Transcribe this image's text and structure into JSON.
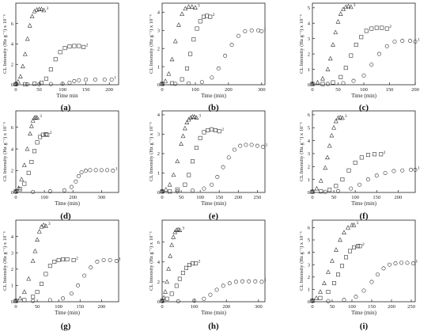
{
  "chart_data": [
    {
      "type": "scatter",
      "panel_label": "(a)",
      "xlabel": "Time min",
      "ylabel": "CL Intensity (Hz g⁻¹) x 10⁻⁶",
      "xlim": [
        0,
        220
      ],
      "ylim": [
        0,
        8
      ],
      "xticks": [
        0,
        50,
        100,
        150,
        200
      ],
      "yticks": [
        0,
        2,
        4,
        6
      ],
      "series": [
        {
          "name": "1",
          "marker": "circle",
          "x": [
            0,
            25,
            50,
            75,
            100,
            115,
            125,
            135,
            150,
            170,
            190,
            205
          ],
          "y": [
            0.05,
            0.05,
            0.06,
            0.07,
            0.1,
            0.2,
            0.35,
            0.45,
            0.5,
            0.5,
            0.5,
            0.5
          ]
        },
        {
          "name": "2",
          "marker": "square",
          "x": [
            0,
            20,
            40,
            55,
            65,
            75,
            85,
            95,
            105,
            115,
            125,
            135,
            145
          ],
          "y": [
            0.05,
            0.05,
            0.1,
            0.2,
            0.6,
            1.5,
            2.5,
            3.2,
            3.6,
            3.75,
            3.8,
            3.8,
            3.7
          ]
        },
        {
          "name": "3",
          "marker": "triangle",
          "x": [
            0,
            5,
            10,
            15,
            20,
            25,
            30,
            35,
            40,
            45,
            50,
            55,
            60
          ],
          "y": [
            0.1,
            0.3,
            0.8,
            1.8,
            3.0,
            4.5,
            5.8,
            6.7,
            7.2,
            7.35,
            7.4,
            7.4,
            7.3
          ]
        }
      ]
    },
    {
      "type": "scatter",
      "panel_label": "(b)",
      "xlabel": "Time (min)",
      "ylabel": "CL Intensity (Hz g⁻¹) x 10⁻⁶",
      "xlim": [
        0,
        310
      ],
      "ylim": [
        0,
        4.5
      ],
      "xticks": [
        0,
        100,
        200,
        300
      ],
      "yticks": [
        0,
        1,
        2,
        3,
        4
      ],
      "series": [
        {
          "name": "1",
          "marker": "circle",
          "x": [
            0,
            40,
            80,
            120,
            150,
            170,
            190,
            210,
            230,
            250,
            270,
            290,
            300
          ],
          "y": [
            0.05,
            0.05,
            0.08,
            0.15,
            0.4,
            0.9,
            1.6,
            2.2,
            2.7,
            2.95,
            3.0,
            3.0,
            2.95
          ]
        },
        {
          "name": "2",
          "marker": "square",
          "x": [
            0,
            30,
            60,
            75,
            85,
            95,
            105,
            115,
            125,
            135,
            145
          ],
          "y": [
            0.05,
            0.08,
            0.3,
            0.9,
            1.7,
            2.5,
            3.1,
            3.5,
            3.75,
            3.8,
            3.75
          ]
        },
        {
          "name": "3",
          "marker": "triangle",
          "x": [
            0,
            10,
            20,
            30,
            40,
            50,
            60,
            70,
            80,
            90,
            100
          ],
          "y": [
            0.05,
            0.2,
            0.6,
            1.4,
            2.4,
            3.3,
            3.9,
            4.2,
            4.3,
            4.3,
            4.25
          ]
        }
      ]
    },
    {
      "type": "scatter",
      "panel_label": "(c)",
      "xlabel": "Time (min)",
      "ylabel": "CL Intensity (Hz g⁻¹) x 10⁻⁶",
      "xlim": [
        0,
        200
      ],
      "ylim": [
        0,
        5.3
      ],
      "xticks": [
        0,
        50,
        100,
        150,
        200
      ],
      "yticks": [
        0,
        1,
        2,
        3,
        4,
        5
      ],
      "series": [
        {
          "name": "1",
          "marker": "circle",
          "x": [
            0,
            30,
            60,
            80,
            100,
            115,
            130,
            145,
            160,
            175,
            190,
            200
          ],
          "y": [
            0.05,
            0.05,
            0.1,
            0.25,
            0.6,
            1.3,
            2.0,
            2.5,
            2.8,
            2.85,
            2.85,
            2.8
          ]
        },
        {
          "name": "2",
          "marker": "square",
          "x": [
            0,
            20,
            40,
            55,
            65,
            75,
            85,
            95,
            105,
            115,
            125,
            135,
            145
          ],
          "y": [
            0.05,
            0.05,
            0.15,
            0.5,
            1.1,
            1.9,
            2.6,
            3.1,
            3.5,
            3.65,
            3.7,
            3.7,
            3.65
          ]
        },
        {
          "name": "3",
          "marker": "triangle",
          "x": [
            0,
            10,
            20,
            30,
            35,
            40,
            45,
            50,
            55,
            60,
            65,
            70,
            75
          ],
          "y": [
            0.05,
            0.15,
            0.4,
            1.0,
            1.7,
            2.6,
            3.4,
            4.1,
            4.6,
            4.9,
            5.05,
            5.1,
            5.05
          ]
        }
      ]
    },
    {
      "type": "scatter",
      "panel_label": "(d)",
      "xlabel": "Time (min)",
      "ylabel": "CL Intensity (Hz g⁻¹) x 10⁻⁶",
      "xlim": [
        0,
        360
      ],
      "ylim": [
        0,
        7.5
      ],
      "xticks": [
        0,
        100,
        200,
        300
      ],
      "yticks": [
        0,
        2,
        4,
        6
      ],
      "series": [
        {
          "name": "1",
          "marker": "circle",
          "x": [
            0,
            60,
            120,
            170,
            195,
            210,
            220,
            230,
            245,
            260,
            280,
            300,
            320,
            340
          ],
          "y": [
            0.05,
            0.05,
            0.1,
            0.2,
            0.5,
            1.0,
            1.5,
            1.85,
            2.0,
            2.05,
            2.05,
            2.05,
            2.05,
            2.0
          ]
        },
        {
          "name": "2",
          "marker": "square",
          "x": [
            0,
            15,
            30,
            45,
            55,
            65,
            75,
            85,
            95,
            105,
            110
          ],
          "y": [
            0.1,
            0.3,
            0.8,
            1.8,
            2.8,
            3.8,
            4.6,
            5.1,
            5.3,
            5.35,
            5.3
          ]
        },
        {
          "name": "3",
          "marker": "triangle",
          "x": [
            0,
            10,
            20,
            30,
            40,
            50,
            55,
            60,
            65,
            70,
            75
          ],
          "y": [
            0.1,
            0.4,
            1.2,
            2.5,
            4.0,
            5.4,
            6.1,
            6.6,
            6.85,
            6.9,
            6.85
          ]
        }
      ]
    },
    {
      "type": "scatter",
      "panel_label": "(e)",
      "xlabel": "Time (min)",
      "ylabel": "CL Intensity (Hz g⁻¹) x 10⁻⁶",
      "xlim": [
        0,
        270
      ],
      "ylim": [
        0,
        4.2
      ],
      "xticks": [
        0,
        50,
        100,
        150,
        200,
        250
      ],
      "yticks": [
        0,
        1,
        2,
        3,
        4
      ],
      "series": [
        {
          "name": "1",
          "marker": "circle",
          "x": [
            0,
            40,
            80,
            110,
            130,
            145,
            160,
            175,
            190,
            205,
            220,
            235,
            250,
            265
          ],
          "y": [
            0.05,
            0.05,
            0.1,
            0.2,
            0.4,
            0.8,
            1.3,
            1.8,
            2.2,
            2.4,
            2.45,
            2.45,
            2.4,
            2.35
          ]
        },
        {
          "name": "2",
          "marker": "square",
          "x": [
            0,
            20,
            40,
            60,
            70,
            80,
            90,
            100,
            110,
            120,
            130,
            140,
            150
          ],
          "y": [
            0.05,
            0.05,
            0.15,
            0.4,
            0.9,
            1.6,
            2.3,
            2.8,
            3.1,
            3.2,
            3.25,
            3.2,
            3.15
          ]
        },
        {
          "name": "3",
          "marker": "triangle",
          "x": [
            0,
            10,
            20,
            30,
            40,
            50,
            55,
            60,
            65,
            70,
            75,
            80,
            85,
            90
          ],
          "y": [
            0.05,
            0.15,
            0.4,
            0.9,
            1.6,
            2.5,
            2.9,
            3.3,
            3.6,
            3.75,
            3.85,
            3.9,
            3.9,
            3.85
          ]
        }
      ]
    },
    {
      "type": "scatter",
      "panel_label": "(f)",
      "xlabel": "Time (min)",
      "ylabel": "CL Intensity (Hz g⁻¹) x 10⁻⁶",
      "xlim": [
        0,
        240
      ],
      "ylim": [
        0,
        6.3
      ],
      "xticks": [
        0,
        50,
        100,
        150,
        200
      ],
      "yticks": [
        0,
        1,
        2,
        3,
        4,
        5,
        6
      ],
      "series": [
        {
          "name": "1",
          "marker": "circle",
          "x": [
            0,
            30,
            60,
            90,
            110,
            130,
            150,
            170,
            190,
            210,
            230,
            240
          ],
          "y": [
            0.05,
            0.05,
            0.1,
            0.3,
            0.6,
            1.0,
            1.3,
            1.5,
            1.65,
            1.7,
            1.75,
            1.75
          ]
        },
        {
          "name": "2",
          "marker": "square",
          "x": [
            0,
            20,
            40,
            55,
            70,
            85,
            100,
            115,
            130,
            145,
            160
          ],
          "y": [
            0.05,
            0.08,
            0.2,
            0.5,
            1.0,
            1.7,
            2.3,
            2.7,
            2.9,
            2.95,
            2.95
          ]
        },
        {
          "name": "3",
          "marker": "triangle",
          "x": [
            0,
            10,
            20,
            30,
            35,
            40,
            45,
            50,
            55,
            60,
            65,
            70
          ],
          "y": [
            0.1,
            0.3,
            0.9,
            1.9,
            2.7,
            3.6,
            4.4,
            5.0,
            5.5,
            5.75,
            5.8,
            5.75
          ]
        }
      ]
    },
    {
      "type": "scatter",
      "panel_label": "(g)",
      "xlabel": "Time (min)",
      "ylabel": "CL Intensity (Hz g⁻¹) x 10⁻⁶",
      "xlim": [
        0,
        240
      ],
      "ylim": [
        0,
        5.0
      ],
      "xticks": [
        0,
        50,
        100,
        150,
        200
      ],
      "yticks": [
        0,
        1,
        2,
        3,
        4
      ],
      "series": [
        {
          "name": "1",
          "marker": "circle",
          "x": [
            0,
            40,
            80,
            110,
            130,
            145,
            160,
            175,
            190,
            205,
            220,
            235
          ],
          "y": [
            0.05,
            0.05,
            0.1,
            0.2,
            0.5,
            1.0,
            1.6,
            2.1,
            2.45,
            2.55,
            2.55,
            2.5
          ]
        },
        {
          "name": "2",
          "marker": "square",
          "x": [
            0,
            20,
            40,
            50,
            60,
            70,
            80,
            90,
            100,
            110,
            120,
            135
          ],
          "y": [
            0.05,
            0.1,
            0.3,
            0.6,
            1.1,
            1.7,
            2.2,
            2.45,
            2.55,
            2.6,
            2.6,
            2.55
          ]
        },
        {
          "name": "3",
          "marker": "triangle",
          "x": [
            0,
            10,
            20,
            30,
            40,
            45,
            50,
            55,
            60,
            65,
            70
          ],
          "y": [
            0.05,
            0.2,
            0.6,
            1.4,
            2.5,
            3.1,
            3.8,
            4.3,
            4.6,
            4.7,
            4.65
          ]
        }
      ]
    },
    {
      "type": "scatter",
      "panel_label": "(h)",
      "xlabel": "Time (min)",
      "ylabel": "CL Intensity (Hz g⁻¹) x 10⁻⁶",
      "xlim": [
        0,
        320
      ],
      "ylim": [
        0,
        8.2
      ],
      "xticks": [
        0,
        100,
        200,
        300
      ],
      "yticks": [
        0,
        2,
        4,
        6
      ],
      "series": [
        {
          "name": "1",
          "marker": "circle",
          "x": [
            0,
            50,
            100,
            130,
            150,
            170,
            190,
            210,
            230,
            250,
            270,
            290,
            310
          ],
          "y": [
            0.05,
            0.05,
            0.1,
            0.3,
            0.7,
            1.2,
            1.6,
            1.85,
            2.0,
            2.05,
            2.05,
            2.05,
            2.0
          ]
        },
        {
          "name": "2",
          "marker": "square",
          "x": [
            0,
            15,
            30,
            45,
            55,
            65,
            75,
            85,
            95,
            105
          ],
          "y": [
            0.1,
            0.3,
            0.8,
            1.6,
            2.3,
            2.9,
            3.4,
            3.7,
            3.85,
            3.85
          ]
        },
        {
          "name": "3",
          "marker": "triangle",
          "x": [
            0,
            5,
            10,
            15,
            20,
            25,
            30,
            35,
            40,
            45,
            50,
            55
          ],
          "y": [
            0.1,
            0.4,
            1.0,
            2.0,
            3.3,
            4.6,
            5.7,
            6.5,
            7.0,
            7.2,
            7.25,
            7.2
          ]
        }
      ]
    },
    {
      "type": "scatter",
      "panel_label": "(i)",
      "xlabel": "Time (min)",
      "ylabel": "CL Intensity (Hz g⁻¹) x 10⁻⁶",
      "xlim": [
        0,
        260
      ],
      "ylim": [
        0,
        6.6
      ],
      "xticks": [
        0,
        50,
        100,
        150,
        200,
        250
      ],
      "yticks": [
        0,
        1,
        2,
        3,
        4,
        5,
        6
      ],
      "series": [
        {
          "name": "1",
          "marker": "circle",
          "x": [
            0,
            40,
            80,
            110,
            130,
            150,
            165,
            180,
            195,
            210,
            225,
            240,
            255
          ],
          "y": [
            0.05,
            0.05,
            0.15,
            0.4,
            0.9,
            1.6,
            2.2,
            2.7,
            3.0,
            3.1,
            3.15,
            3.15,
            3.1
          ]
        },
        {
          "name": "2",
          "marker": "square",
          "x": [
            0,
            20,
            40,
            55,
            65,
            75,
            85,
            95,
            105,
            115,
            120
          ],
          "y": [
            0.1,
            0.3,
            0.8,
            1.5,
            2.2,
            2.9,
            3.6,
            4.1,
            4.4,
            4.5,
            4.5
          ]
        },
        {
          "name": "3",
          "marker": "triangle",
          "x": [
            0,
            10,
            20,
            30,
            40,
            50,
            60,
            70,
            80,
            90,
            100,
            105
          ],
          "y": [
            0.1,
            0.3,
            0.8,
            1.5,
            2.4,
            3.3,
            4.2,
            5.0,
            5.6,
            6.0,
            6.2,
            6.2
          ]
        }
      ]
    }
  ]
}
